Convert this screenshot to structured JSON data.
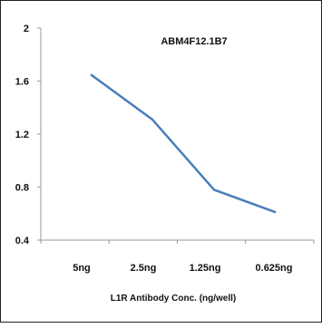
{
  "chart_data": {
    "type": "line",
    "title": "ABM4F12.1B7",
    "xlabel": "L1R Antibody Conc. (ng/well)",
    "ylabel": "",
    "categories": [
      "5ng",
      "2.5ng",
      "1.25ng",
      "0.625ng"
    ],
    "series": [
      {
        "values": [
          1.65,
          1.31,
          0.78,
          0.61
        ]
      }
    ],
    "ylim": [
      0.4,
      2
    ],
    "yticks": [
      "2",
      "1.6",
      "1.2",
      "0.8",
      "0.4"
    ],
    "grid": false,
    "line_color": "#4a7ebb"
  }
}
